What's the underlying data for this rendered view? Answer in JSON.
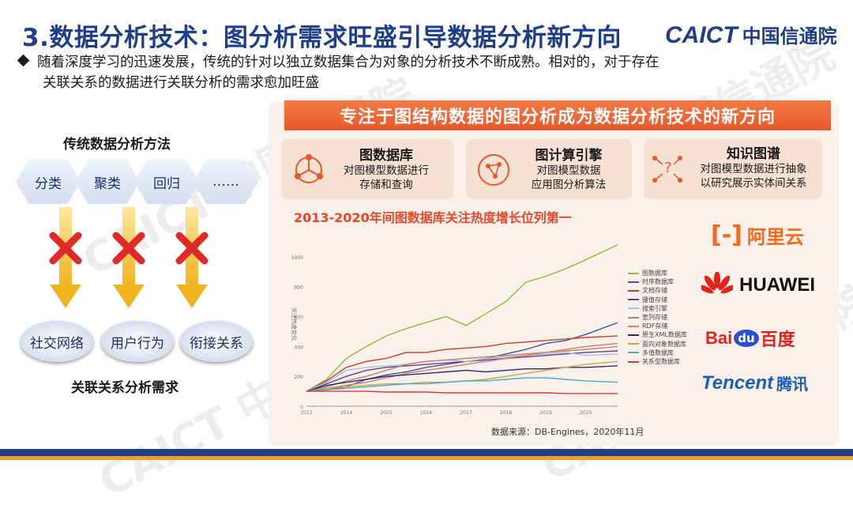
{
  "title": "3.数据分析技术：图分析需求旺盛引导数据分析新方向",
  "logo": {
    "en": "CAICT",
    "cn": "中国信通院"
  },
  "bullet": {
    "line1": "随着深度学习的迅速发展，传统的针对以独立数据集合为对象的分析技术不断成熟。相对的，对于存在",
    "line2": "关联关系的数据进行关联分析的需求愈加旺盛"
  },
  "traditional": {
    "title": "传统数据分析方法",
    "methods": [
      "分类",
      "聚类",
      "回归",
      "……"
    ]
  },
  "association": {
    "title": "关联关系分析需求",
    "items": [
      "社交网络",
      "用户行为",
      "衔接关系"
    ]
  },
  "banner": "专注于图结构数据的图分析成为数据分析技术的新方向",
  "cards": [
    {
      "title": "图数据库",
      "desc1": "对图模型数据进行",
      "desc2": "存储和查询",
      "icon": "network-cycle-icon"
    },
    {
      "title": "图计算引擎",
      "desc1": "对图模型数据",
      "desc2": "应用图分析算法",
      "icon": "graph-compute-icon"
    },
    {
      "title": "知识图谱",
      "desc1": "对图模型数据进行抽象",
      "desc2": "以研究展示实体间关系",
      "icon": "knowledge-graph-icon"
    }
  ],
  "chart_title": "2013-2020年间图数据库关注热度增长位列第一",
  "source": "数据来源：DB-Engines，2020年11月",
  "brands": {
    "aliyun": "阿里云",
    "huawei": "HUAWEI",
    "baidu_a": "Bai",
    "baidu_b": "du",
    "baidu_c": "百度",
    "tencent_en": "Tencent",
    "tencent_cn": "腾讯"
  },
  "watermark": "CAICT 中国信通院",
  "chart_data": {
    "type": "line",
    "ylabel": "关注热度变化",
    "x_ticks": [
      "2013",
      "2014",
      "2015",
      "2016",
      "2017",
      "2018",
      "2019",
      "2020"
    ],
    "y_ticks": [
      0,
      200,
      400,
      600,
      800,
      1000
    ],
    "ylim": [
      0,
      1100
    ],
    "x": [
      2013.0,
      2013.5,
      2014.0,
      2014.5,
      2015.0,
      2015.5,
      2016.0,
      2016.5,
      2017.0,
      2017.5,
      2018.0,
      2018.5,
      2019.0,
      2019.5,
      2020.0,
      2020.8
    ],
    "series": [
      {
        "name": "图数据库",
        "color": "#8dbb3c",
        "values": [
          100,
          180,
          320,
          400,
          470,
          520,
          560,
          600,
          540,
          620,
          700,
          830,
          870,
          920,
          980,
          1080
        ]
      },
      {
        "name": "时序数据库",
        "color": "#3a55a4",
        "values": [
          100,
          110,
          130,
          180,
          210,
          230,
          260,
          280,
          300,
          320,
          350,
          380,
          420,
          440,
          480,
          560
        ]
      },
      {
        "name": "文档存储",
        "color": "#c4422c",
        "values": [
          100,
          170,
          260,
          300,
          320,
          360,
          360,
          380,
          390,
          400,
          420,
          430,
          440,
          450,
          460,
          470
        ]
      },
      {
        "name": "键值存储",
        "color": "#6a3c8c",
        "values": [
          100,
          150,
          200,
          240,
          260,
          270,
          280,
          290,
          300,
          310,
          320,
          330,
          340,
          350,
          360,
          370
        ]
      },
      {
        "name": "搜索引擎",
        "color": "#9ac6e0",
        "values": [
          100,
          160,
          240,
          260,
          270,
          280,
          300,
          310,
          300,
          320,
          330,
          340,
          350,
          360,
          340,
          350
        ]
      },
      {
        "name": "宽列存储",
        "color": "#b2876a",
        "values": [
          100,
          130,
          170,
          200,
          240,
          280,
          300,
          310,
          320,
          330,
          340,
          350,
          360,
          370,
          380,
          400
        ]
      },
      {
        "name": "RDF存储",
        "color": "#d47c6c",
        "values": [
          100,
          120,
          140,
          160,
          190,
          220,
          240,
          260,
          280,
          300,
          320,
          340,
          360,
          380,
          400,
          420
        ]
      },
      {
        "name": "原生XML数据库",
        "color": "#2c2c6c",
        "values": [
          100,
          140,
          160,
          180,
          200,
          210,
          220,
          230,
          240,
          230,
          240,
          250,
          250,
          260,
          260,
          270
        ]
      },
      {
        "name": "面向对象数据库",
        "color": "#c9a64a",
        "values": [
          100,
          120,
          130,
          140,
          150,
          150,
          160,
          160,
          170,
          180,
          200,
          220,
          240,
          260,
          280,
          300
        ]
      },
      {
        "name": "多值数据库",
        "color": "#4aa8c8",
        "values": [
          100,
          110,
          120,
          130,
          140,
          150,
          150,
          160,
          170,
          170,
          180,
          190,
          190,
          180,
          170,
          160
        ]
      },
      {
        "name": "关系型数据库",
        "color": "#d43c3c",
        "values": [
          100,
          100,
          100,
          100,
          95,
          95,
          95,
          90,
          90,
          90,
          90,
          90,
          90,
          85,
          85,
          85
        ]
      }
    ]
  }
}
